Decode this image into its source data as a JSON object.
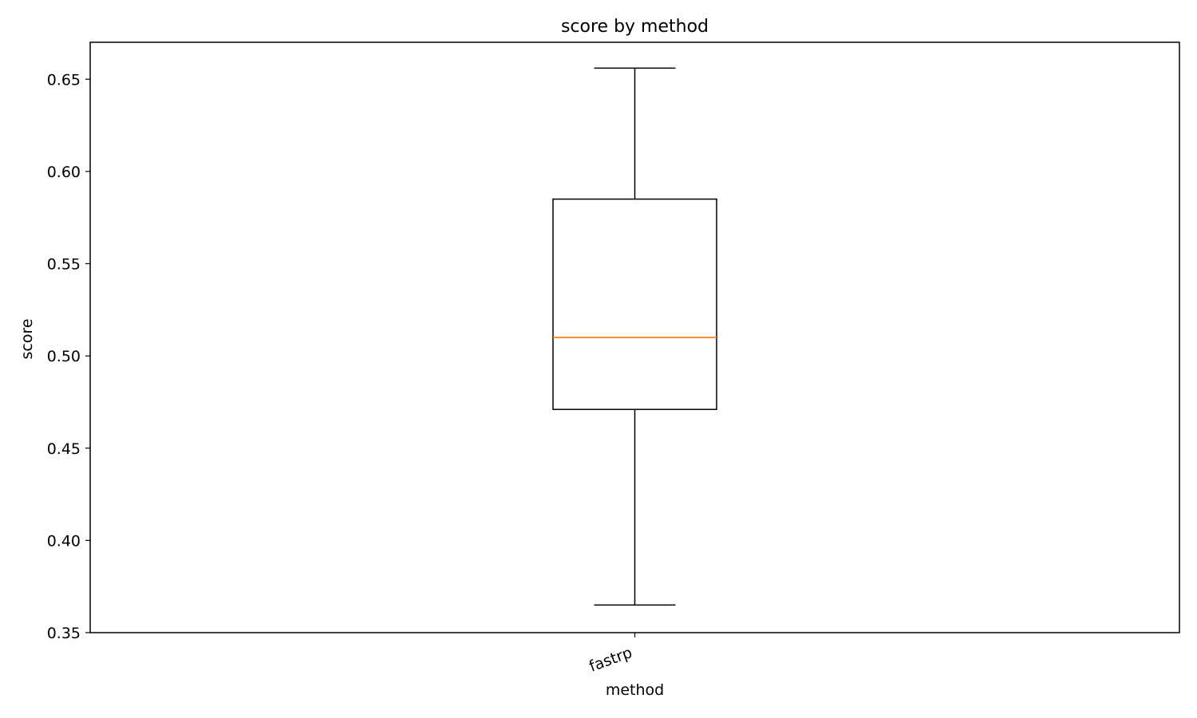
{
  "chart_data": {
    "type": "box",
    "title": "score by method",
    "xlabel": "method",
    "ylabel": "score",
    "ylim": [
      0.35,
      0.67
    ],
    "yticks": [
      "0.35",
      "0.40",
      "0.45",
      "0.50",
      "0.55",
      "0.60",
      "0.65"
    ],
    "categories": [
      "fastrp"
    ],
    "boxes": [
      {
        "category": "fastrp",
        "whisker_low": 0.365,
        "q1": 0.471,
        "median": 0.51,
        "q3": 0.585,
        "whisker_high": 0.656
      }
    ],
    "grid": false,
    "colors": {
      "box": "#000000",
      "median": "#ff7f0e",
      "axes": "#000000"
    }
  }
}
